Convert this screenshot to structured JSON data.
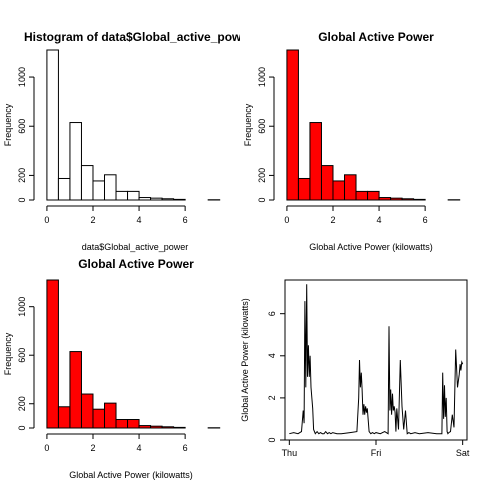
{
  "colors": {
    "red_fill": "#ff0000",
    "white_fill": "#ffffff",
    "stroke": "#000000"
  },
  "chart_data": [
    {
      "type": "bar",
      "subtype": "histogram",
      "title": "Histogram of data$Global_active_power",
      "xlabel": "data$Global_active_power",
      "ylabel": "Frequency",
      "fill": "white",
      "bins": [
        [
          0,
          0.5
        ],
        [
          0.5,
          1
        ],
        [
          1,
          1.5
        ],
        [
          1.5,
          2
        ],
        [
          2,
          2.5
        ],
        [
          2.5,
          3
        ],
        [
          3,
          3.5
        ],
        [
          3.5,
          4
        ],
        [
          4,
          4.5
        ],
        [
          4.5,
          5
        ],
        [
          5,
          5.5
        ],
        [
          5.5,
          6
        ],
        [
          6,
          6.5
        ],
        [
          6.5,
          7
        ],
        [
          7,
          7.5
        ]
      ],
      "values": [
        1220,
        175,
        630,
        280,
        155,
        205,
        70,
        70,
        20,
        15,
        10,
        5,
        0,
        0,
        2
      ],
      "xlim": [
        -0.3,
        7.6
      ],
      "ylim": [
        0,
        1220
      ],
      "xticks": [
        0,
        2,
        4,
        6
      ],
      "xtick_labels": [
        "0",
        "2",
        "4",
        "6"
      ],
      "yticks": [
        0,
        200,
        600,
        1000
      ],
      "ytick_labels": [
        "0",
        "200",
        "600",
        "1000"
      ]
    },
    {
      "type": "bar",
      "subtype": "histogram",
      "title": "Global Active Power",
      "xlabel": "Global Active Power (kilowatts)",
      "ylabel": "Frequency",
      "fill": "red",
      "bins": [
        [
          0,
          0.5
        ],
        [
          0.5,
          1
        ],
        [
          1,
          1.5
        ],
        [
          1.5,
          2
        ],
        [
          2,
          2.5
        ],
        [
          2.5,
          3
        ],
        [
          3,
          3.5
        ],
        [
          3.5,
          4
        ],
        [
          4,
          4.5
        ],
        [
          4.5,
          5
        ],
        [
          5,
          5.5
        ],
        [
          5.5,
          6
        ],
        [
          6,
          6.5
        ],
        [
          6.5,
          7
        ],
        [
          7,
          7.5
        ]
      ],
      "values": [
        1220,
        175,
        630,
        280,
        155,
        205,
        70,
        70,
        20,
        15,
        10,
        5,
        0,
        0,
        2
      ],
      "xlim": [
        -0.3,
        7.6
      ],
      "ylim": [
        0,
        1220
      ],
      "xticks": [
        0,
        2,
        4,
        6
      ],
      "xtick_labels": [
        "0",
        "2",
        "4",
        "6"
      ],
      "yticks": [
        0,
        200,
        600,
        1000
      ],
      "ytick_labels": [
        "0",
        "200",
        "600",
        "1000"
      ]
    },
    {
      "type": "bar",
      "subtype": "histogram",
      "title": "Global Active Power",
      "xlabel": "Global Active Power (kilowatts)",
      "ylabel": "Frequency",
      "fill": "red",
      "bins": [
        [
          0,
          0.5
        ],
        [
          0.5,
          1
        ],
        [
          1,
          1.5
        ],
        [
          1.5,
          2
        ],
        [
          2,
          2.5
        ],
        [
          2.5,
          3
        ],
        [
          3,
          3.5
        ],
        [
          3.5,
          4
        ],
        [
          4,
          4.5
        ],
        [
          4.5,
          5
        ],
        [
          5,
          5.5
        ],
        [
          5.5,
          6
        ],
        [
          6,
          6.5
        ],
        [
          6.5,
          7
        ],
        [
          7,
          7.5
        ]
      ],
      "values": [
        1220,
        175,
        630,
        280,
        155,
        205,
        70,
        70,
        20,
        15,
        10,
        5,
        0,
        0,
        2
      ],
      "xlim": [
        -0.3,
        7.6
      ],
      "ylim": [
        0,
        1220
      ],
      "xticks": [
        0,
        2,
        4,
        6
      ],
      "xtick_labels": [
        "0",
        "2",
        "4",
        "6"
      ],
      "yticks": [
        0,
        200,
        600,
        1000
      ],
      "ytick_labels": [
        "0",
        "200",
        "600",
        "1000"
      ]
    },
    {
      "type": "line",
      "title": "",
      "xlabel": "",
      "ylabel": "Global Active Power (kilowatts)",
      "x": [
        0,
        0.05,
        0.1,
        0.14,
        0.16,
        0.17,
        0.18,
        0.19,
        0.2,
        0.21,
        0.22,
        0.23,
        0.24,
        0.25,
        0.27,
        0.28,
        0.3,
        0.32,
        0.34,
        0.36,
        0.38,
        0.4,
        0.42,
        0.44,
        0.46,
        0.48,
        0.5,
        0.55,
        0.6,
        0.7,
        0.78,
        0.8,
        0.81,
        0.82,
        0.83,
        0.84,
        0.85,
        0.86,
        0.87,
        0.88,
        0.89,
        0.9,
        0.92,
        0.94,
        0.96,
        0.98,
        1.0,
        1.05,
        1.1,
        1.14,
        1.15,
        1.16,
        1.17,
        1.18,
        1.19,
        1.2,
        1.21,
        1.22,
        1.23,
        1.24,
        1.26,
        1.28,
        1.3,
        1.32,
        1.34,
        1.36,
        1.38,
        1.4,
        1.45,
        1.5,
        1.6,
        1.7,
        1.76,
        1.77,
        1.78,
        1.79,
        1.8,
        1.81,
        1.82,
        1.83,
        1.84,
        1.86,
        1.88,
        1.9,
        1.92,
        1.94,
        1.96,
        1.97,
        1.98,
        1.99,
        2.0
      ],
      "y": [
        0.3,
        0.35,
        0.3,
        0.4,
        1.4,
        0.8,
        6.6,
        2.5,
        7.4,
        3.0,
        4.5,
        3.0,
        4.0,
        2.5,
        1.5,
        0.5,
        0.3,
        0.4,
        0.3,
        0.35,
        0.3,
        0.3,
        0.4,
        0.3,
        0.35,
        0.3,
        0.35,
        0.3,
        0.3,
        0.35,
        0.4,
        2.0,
        3.8,
        2.5,
        3.2,
        2.4,
        1.2,
        1.7,
        1.2,
        1.6,
        1.3,
        1.5,
        0.4,
        0.3,
        0.35,
        0.3,
        0.35,
        0.3,
        0.4,
        0.3,
        5.4,
        1.4,
        2.4,
        1.2,
        2.2,
        1.4,
        1.6,
        1.3,
        0.4,
        1.5,
        0.5,
        3.8,
        1.6,
        0.5,
        1.4,
        0.3,
        0.35,
        0.3,
        0.35,
        0.3,
        0.35,
        0.3,
        0.3,
        3.2,
        1.0,
        2.6,
        1.1,
        2.0,
        0.4,
        0.3,
        0.35,
        0.4,
        1.2,
        0.6,
        4.3,
        2.5,
        3.1,
        3.6,
        3.3,
        3.7,
        3.6
      ],
      "xlim": [
        -0.05,
        2.05
      ],
      "ylim": [
        0,
        7.6
      ],
      "xticks": [
        0,
        1,
        2
      ],
      "xtick_labels": [
        "Thu",
        "Fri",
        "Sat"
      ],
      "yticks": [
        0,
        2,
        4,
        6
      ],
      "ytick_labels": [
        "0",
        "2",
        "4",
        "6"
      ]
    }
  ]
}
